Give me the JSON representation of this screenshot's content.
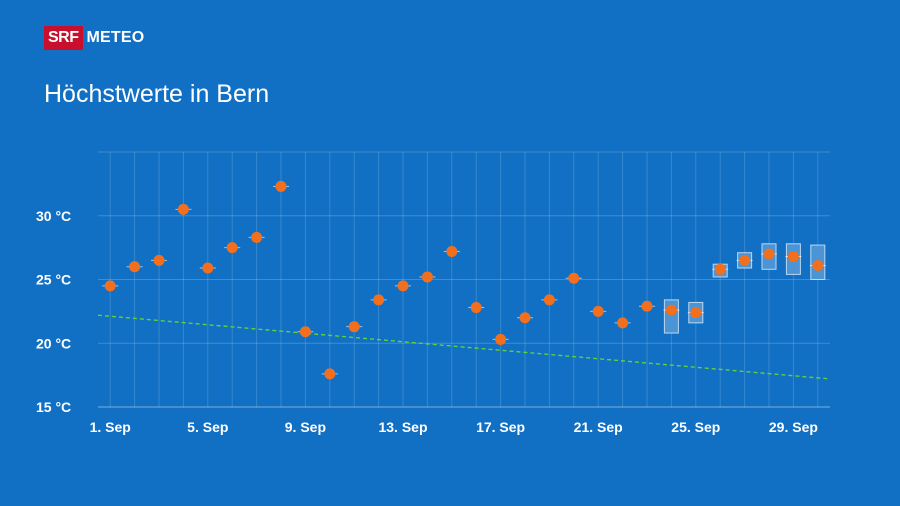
{
  "header": {
    "logo_brand": "SRF",
    "logo_product": "METEO",
    "title": "Höchstwerte in Bern"
  },
  "colors": {
    "background": "#1170c4",
    "point": "#f26f1e",
    "trend": "#5fd13a",
    "range_fill": "#4b94d6",
    "range_stroke": "#bcd7f0",
    "logo_red": "#c8102e"
  },
  "chart_data": {
    "type": "scatter",
    "title": "Höchstwerte in Bern",
    "xlabel": "",
    "ylabel": "",
    "x_start_label": "1. Sep",
    "days": 30,
    "xlim": [
      0.5,
      30.5
    ],
    "ylim": [
      15,
      35
    ],
    "yticks": [
      15,
      20,
      25,
      30
    ],
    "ytick_labels": [
      "15 °C",
      "20 °C",
      "25 °C",
      "30 °C"
    ],
    "xticks": [
      1,
      5,
      9,
      13,
      17,
      21,
      25,
      29
    ],
    "xtick_labels": [
      "1. Sep",
      "5. Sep",
      "9. Sep",
      "13. Sep",
      "17. Sep",
      "21. Sep",
      "25. Sep",
      "29. Sep"
    ],
    "grid": true,
    "series": [
      {
        "type": "scatter",
        "x": [
          1,
          2,
          3,
          4,
          5,
          6,
          7,
          8,
          9,
          10,
          11,
          12,
          13,
          14,
          15,
          16,
          17,
          18,
          19,
          20,
          21,
          22,
          23,
          24,
          25,
          26,
          27,
          28,
          29,
          30
        ],
        "y": [
          24.5,
          26.0,
          26.5,
          30.5,
          25.9,
          27.5,
          28.3,
          32.3,
          20.9,
          17.6,
          21.3,
          23.4,
          24.5,
          25.2,
          27.2,
          22.8,
          20.3,
          22.0,
          23.4,
          25.1,
          22.5,
          21.6,
          22.9,
          22.6,
          22.4,
          25.8,
          26.5,
          27.0,
          26.8,
          26.1
        ]
      },
      {
        "type": "range",
        "x": [
          24,
          25,
          26,
          27,
          28,
          29,
          30
        ],
        "low": [
          20.8,
          21.6,
          25.2,
          25.9,
          25.8,
          25.4,
          25.0
        ],
        "high": [
          23.4,
          23.2,
          26.2,
          27.1,
          27.8,
          27.8,
          27.7
        ]
      },
      {
        "type": "trend",
        "x": [
          0.5,
          30.5
        ],
        "y": [
          22.2,
          17.2
        ]
      }
    ]
  }
}
